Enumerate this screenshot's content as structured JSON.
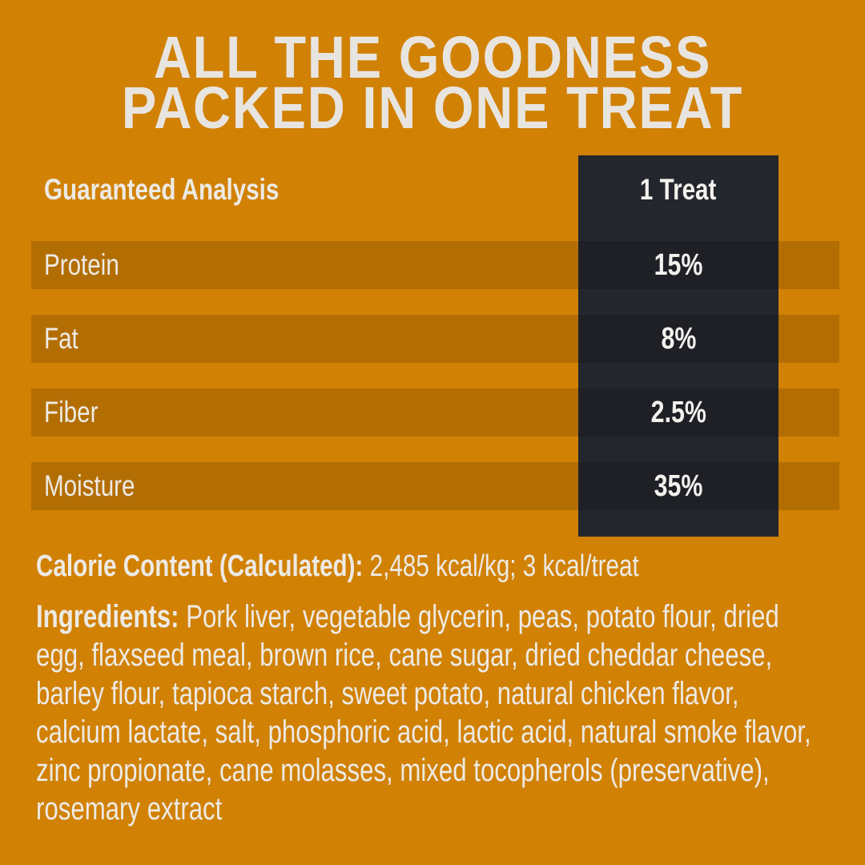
{
  "title": {
    "line1": "ALL THE GOODNESS",
    "line2": "PACKED IN ONE TREAT"
  },
  "table": {
    "header": {
      "label": "Guaranteed Analysis",
      "column": "1 Treat"
    },
    "rows": [
      {
        "label": "Protein",
        "value": "15%"
      },
      {
        "label": "Fat",
        "value": "8%"
      },
      {
        "label": "Fiber",
        "value": "2.5%"
      },
      {
        "label": "Moisture",
        "value": "35%"
      }
    ]
  },
  "calories": {
    "label": "Calorie Content (Calculated):",
    "value": "2,485 kcal/kg; 3 kcal/treat"
  },
  "ingredients": {
    "label": "Ingredients:",
    "value": "Pork liver, vegetable glycerin, peas, potato flour, dried egg, flaxseed meal, brown rice, cane sugar, dried cheddar cheese, barley flour, tapioca starch, sweet potato, natural chicken flavor, calcium lactate, salt, phosphoric acid, lactic acid, natural smoke flavor, zinc propionate, cane molasses, mixed tocopherols (preservative), rosemary extract"
  },
  "colors": {
    "background": "#d18104",
    "panel": "#24262d",
    "row_overlay": "rgba(0,0,0,0.14)",
    "text": "#edeae5",
    "title_text": "#e8e5e0"
  }
}
